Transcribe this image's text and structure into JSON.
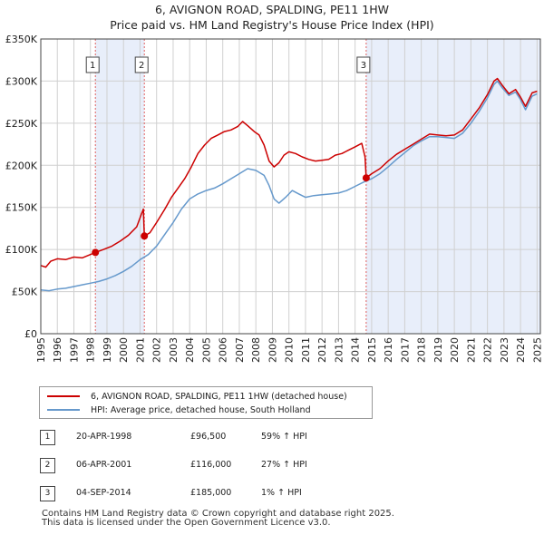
{
  "title": {
    "line1": "6, AVIGNON ROAD, SPALDING, PE11 1HW",
    "line2": "Price paid vs. HM Land Registry's House Price Index (HPI)"
  },
  "colors": {
    "price_line": "#cc0000",
    "hpi_line": "#6699cc",
    "shade": "#e8eefa",
    "grid": "#d0d0d0",
    "vline": "#e06060"
  },
  "chart_data": {
    "type": "line",
    "ylim": [
      0,
      350000
    ],
    "xlim": [
      1995.0,
      2025.2
    ],
    "ytick_values": [
      0,
      50000,
      100000,
      150000,
      200000,
      250000,
      300000,
      350000
    ],
    "ytick_labels": [
      "£0",
      "£50K",
      "£100K",
      "£150K",
      "£200K",
      "£250K",
      "£300K",
      "£350K"
    ],
    "xtick_values": [
      1995,
      1996,
      1997,
      1998,
      1999,
      2000,
      2001,
      2002,
      2003,
      2004,
      2005,
      2006,
      2007,
      2008,
      2009,
      2010,
      2011,
      2012,
      2013,
      2014,
      2015,
      2016,
      2017,
      2018,
      2019,
      2020,
      2021,
      2022,
      2023,
      2024,
      2025
    ],
    "xtick_labels": [
      "1995",
      "1996",
      "1997",
      "1998",
      "1999",
      "2000",
      "2001",
      "2002",
      "2003",
      "2004",
      "2005",
      "2006",
      "2007",
      "2008",
      "2009",
      "2010",
      "2011",
      "2012",
      "2013",
      "2014",
      "2015",
      "2016",
      "2017",
      "2018",
      "2019",
      "2020",
      "2021",
      "2022",
      "2023",
      "2024",
      "2025"
    ],
    "shaded_ranges": [
      [
        1998.3,
        2001.26
      ],
      [
        2014.67,
        2025.2
      ]
    ],
    "series": [
      {
        "name": "6, AVIGNON ROAD, SPALDING, PE11 1HW (detached house)",
        "color": "#cc0000",
        "points": [
          [
            1995.0,
            81000
          ],
          [
            1995.3,
            79000
          ],
          [
            1995.6,
            86000
          ],
          [
            1996.0,
            89000
          ],
          [
            1996.5,
            88000
          ],
          [
            1997.0,
            91000
          ],
          [
            1997.5,
            90000
          ],
          [
            1998.0,
            94000
          ],
          [
            1998.3,
            96500
          ],
          [
            1998.8,
            100000
          ],
          [
            1999.3,
            104000
          ],
          [
            1999.8,
            110000
          ],
          [
            2000.3,
            117000
          ],
          [
            2000.8,
            127000
          ],
          [
            2001.1,
            143000
          ],
          [
            2001.2,
            148000
          ],
          [
            2001.26,
            116000
          ],
          [
            2001.6,
            120000
          ],
          [
            2002.0,
            132000
          ],
          [
            2002.5,
            148000
          ],
          [
            2002.9,
            162000
          ],
          [
            2003.3,
            173000
          ],
          [
            2003.7,
            184000
          ],
          [
            2004.1,
            198000
          ],
          [
            2004.5,
            214000
          ],
          [
            2004.9,
            224000
          ],
          [
            2005.3,
            232000
          ],
          [
            2005.7,
            236000
          ],
          [
            2006.1,
            240000
          ],
          [
            2006.5,
            242000
          ],
          [
            2006.9,
            246000
          ],
          [
            2007.2,
            252000
          ],
          [
            2007.5,
            247000
          ],
          [
            2007.9,
            240000
          ],
          [
            2008.2,
            236000
          ],
          [
            2008.5,
            224000
          ],
          [
            2008.8,
            205000
          ],
          [
            2009.1,
            198000
          ],
          [
            2009.4,
            203000
          ],
          [
            2009.7,
            212000
          ],
          [
            2010.0,
            216000
          ],
          [
            2010.4,
            214000
          ],
          [
            2010.8,
            210000
          ],
          [
            2011.2,
            207000
          ],
          [
            2011.6,
            205000
          ],
          [
            2012.0,
            206000
          ],
          [
            2012.4,
            207000
          ],
          [
            2012.8,
            212000
          ],
          [
            2013.2,
            214000
          ],
          [
            2013.6,
            218000
          ],
          [
            2014.0,
            222000
          ],
          [
            2014.4,
            226000
          ],
          [
            2014.6,
            210000
          ],
          [
            2014.67,
            185000
          ],
          [
            2015.0,
            190000
          ],
          [
            2015.5,
            196000
          ],
          [
            2016.0,
            205000
          ],
          [
            2016.5,
            213000
          ],
          [
            2017.0,
            219000
          ],
          [
            2017.5,
            225000
          ],
          [
            2018.0,
            231000
          ],
          [
            2018.5,
            237000
          ],
          [
            2019.0,
            236000
          ],
          [
            2019.5,
            235000
          ],
          [
            2020.0,
            236000
          ],
          [
            2020.5,
            242000
          ],
          [
            2021.0,
            255000
          ],
          [
            2021.5,
            268000
          ],
          [
            2022.0,
            284000
          ],
          [
            2022.4,
            300000
          ],
          [
            2022.6,
            303000
          ],
          [
            2022.9,
            295000
          ],
          [
            2023.3,
            285000
          ],
          [
            2023.7,
            290000
          ],
          [
            2024.0,
            281000
          ],
          [
            2024.3,
            270000
          ],
          [
            2024.7,
            286000
          ],
          [
            2025.0,
            288000
          ]
        ]
      },
      {
        "name": "HPI: Average price, detached house, South Holland",
        "color": "#6699cc",
        "points": [
          [
            1995.0,
            52000
          ],
          [
            1995.5,
            51000
          ],
          [
            1996.0,
            53000
          ],
          [
            1996.5,
            54000
          ],
          [
            1997.0,
            56000
          ],
          [
            1997.5,
            58000
          ],
          [
            1998.0,
            60000
          ],
          [
            1998.5,
            62000
          ],
          [
            1999.0,
            65000
          ],
          [
            1999.5,
            69000
          ],
          [
            2000.0,
            74000
          ],
          [
            2000.5,
            80000
          ],
          [
            2001.0,
            88000
          ],
          [
            2001.5,
            94000
          ],
          [
            2002.0,
            104000
          ],
          [
            2002.5,
            118000
          ],
          [
            2003.0,
            132000
          ],
          [
            2003.5,
            148000
          ],
          [
            2004.0,
            160000
          ],
          [
            2004.5,
            166000
          ],
          [
            2005.0,
            170000
          ],
          [
            2005.5,
            173000
          ],
          [
            2006.0,
            178000
          ],
          [
            2006.5,
            184000
          ],
          [
            2007.0,
            190000
          ],
          [
            2007.5,
            196000
          ],
          [
            2008.0,
            194000
          ],
          [
            2008.5,
            188000
          ],
          [
            2008.8,
            176000
          ],
          [
            2009.1,
            160000
          ],
          [
            2009.4,
            155000
          ],
          [
            2009.8,
            162000
          ],
          [
            2010.2,
            170000
          ],
          [
            2010.6,
            166000
          ],
          [
            2011.0,
            162000
          ],
          [
            2011.5,
            164000
          ],
          [
            2012.0,
            165000
          ],
          [
            2012.5,
            166000
          ],
          [
            2013.0,
            167000
          ],
          [
            2013.5,
            170000
          ],
          [
            2014.0,
            175000
          ],
          [
            2014.5,
            180000
          ],
          [
            2015.0,
            184000
          ],
          [
            2015.5,
            190000
          ],
          [
            2016.0,
            198000
          ],
          [
            2016.5,
            207000
          ],
          [
            2017.0,
            215000
          ],
          [
            2017.5,
            223000
          ],
          [
            2018.0,
            229000
          ],
          [
            2018.5,
            234000
          ],
          [
            2019.0,
            234000
          ],
          [
            2019.5,
            233000
          ],
          [
            2020.0,
            232000
          ],
          [
            2020.5,
            238000
          ],
          [
            2021.0,
            250000
          ],
          [
            2021.5,
            264000
          ],
          [
            2022.0,
            280000
          ],
          [
            2022.4,
            296000
          ],
          [
            2022.6,
            300000
          ],
          [
            2022.9,
            292000
          ],
          [
            2023.3,
            283000
          ],
          [
            2023.7,
            287000
          ],
          [
            2024.0,
            278000
          ],
          [
            2024.3,
            266000
          ],
          [
            2024.7,
            282000
          ],
          [
            2025.0,
            285000
          ]
        ]
      }
    ],
    "sales": [
      {
        "label": "1",
        "x": 1998.3,
        "price": 96500
      },
      {
        "label": "2",
        "x": 2001.26,
        "price": 116000
      },
      {
        "label": "3",
        "x": 2014.67,
        "price": 185000
      }
    ]
  },
  "legend": {
    "price_label": "6, AVIGNON ROAD, SPALDING, PE11 1HW (detached house)",
    "hpi_label": "HPI: Average price, detached house, South Holland"
  },
  "transactions": [
    {
      "num": "1",
      "date": "20-APR-1998",
      "price": "£96,500",
      "pct": "59% ↑ HPI"
    },
    {
      "num": "2",
      "date": "06-APR-2001",
      "price": "£116,000",
      "pct": "27% ↑ HPI"
    },
    {
      "num": "3",
      "date": "04-SEP-2014",
      "price": "£185,000",
      "pct": "1% ↑ HPI"
    }
  ],
  "footer": {
    "line1": "Contains HM Land Registry data © Crown copyright and database right 2025.",
    "line2": "This data is licensed under the Open Government Licence v3.0."
  }
}
